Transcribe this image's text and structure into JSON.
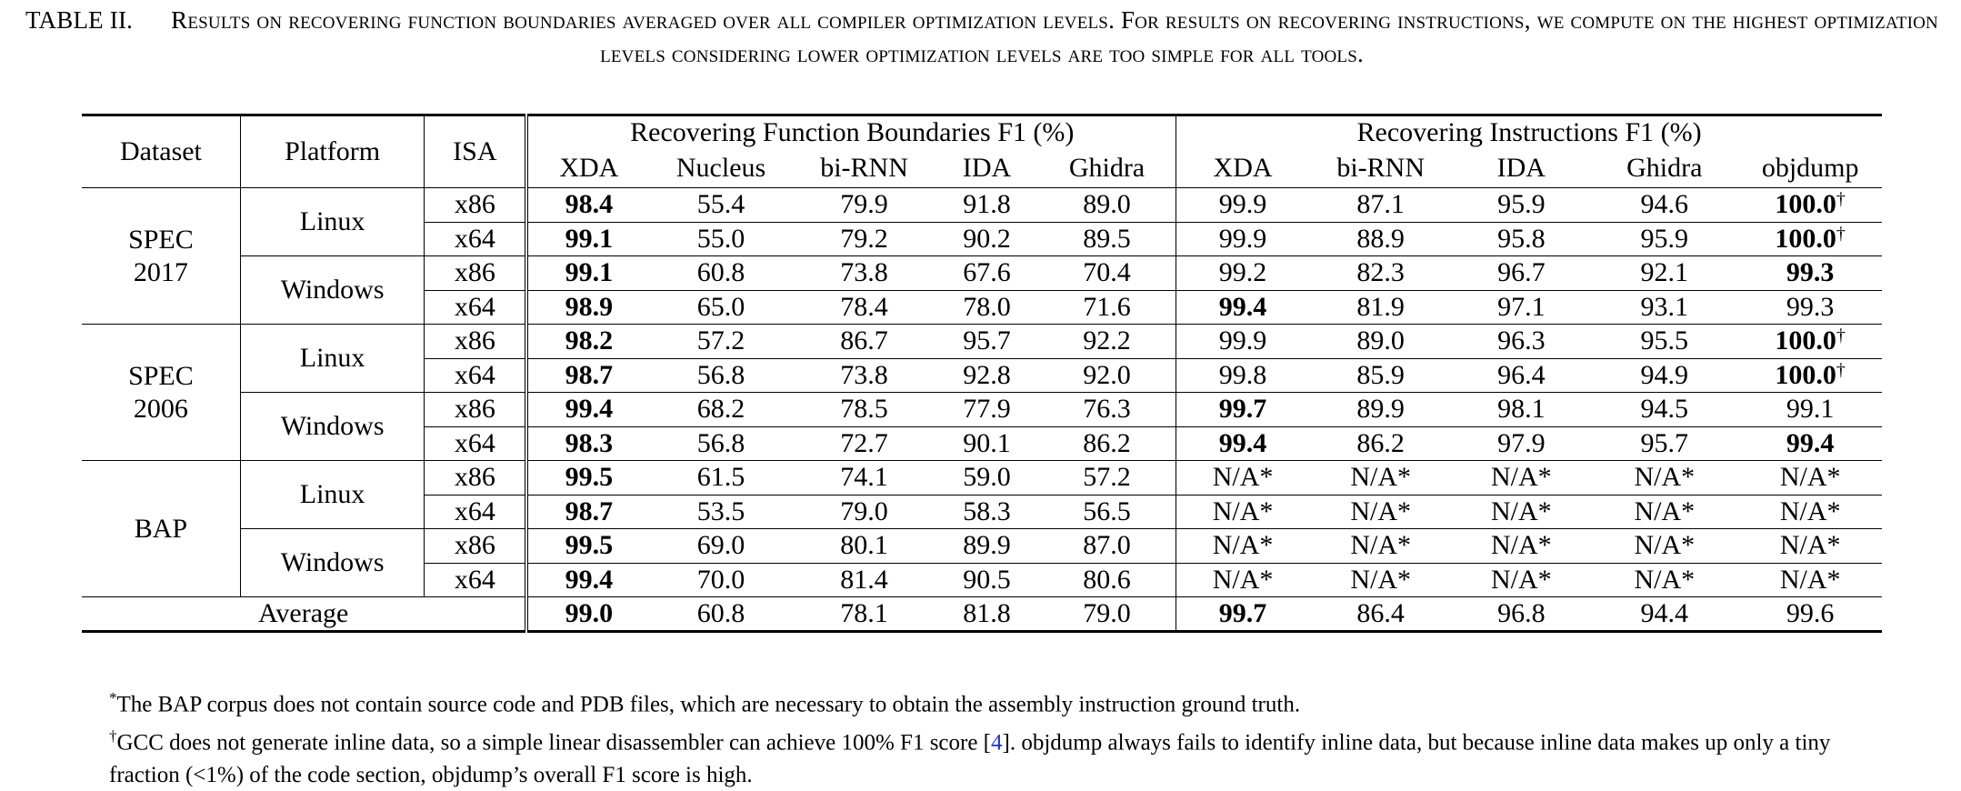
{
  "caption": {
    "label": "TABLE II.",
    "text": "Results on recovering function boundaries averaged over all compiler optimization levels. For results on recovering instructions, we compute on the highest optimization levels considering lower optimization levels are too simple for all tools."
  },
  "headers": {
    "dataset": "Dataset",
    "platform": "Platform",
    "isa": "ISA",
    "group_fb": "Recovering Function Boundaries F1 (%)",
    "group_ins": "Recovering Instructions F1 (%)",
    "fb_tools": [
      "XDA",
      "Nucleus",
      "bi-RNN",
      "IDA",
      "Ghidra"
    ],
    "ins_tools": [
      "XDA",
      "bi-RNN",
      "IDA",
      "Ghidra",
      "objdump"
    ]
  },
  "datasets": [
    {
      "name": [
        "SPEC",
        "2017"
      ],
      "platforms": [
        {
          "name": "Linux",
          "rows": [
            {
              "isa": "x86",
              "fb": [
                "98.4",
                "55.4",
                "79.9",
                "91.8",
                "89.0"
              ],
              "ins": [
                "99.9",
                "87.1",
                "95.9",
                "94.6",
                "100.0"
              ]
            },
            {
              "isa": "x64",
              "fb": [
                "99.1",
                "55.0",
                "79.2",
                "90.2",
                "89.5"
              ],
              "ins": [
                "99.9",
                "88.9",
                "95.8",
                "95.9",
                "100.0"
              ]
            }
          ]
        },
        {
          "name": "Windows",
          "rows": [
            {
              "isa": "x86",
              "fb": [
                "99.1",
                "60.8",
                "73.8",
                "67.6",
                "70.4"
              ],
              "ins": [
                "99.2",
                "82.3",
                "96.7",
                "92.1",
                "99.3"
              ]
            },
            {
              "isa": "x64",
              "fb": [
                "98.9",
                "65.0",
                "78.4",
                "78.0",
                "71.6"
              ],
              "ins": [
                "99.4",
                "81.9",
                "97.1",
                "93.1",
                "99.3"
              ]
            }
          ]
        }
      ]
    },
    {
      "name": [
        "SPEC",
        "2006"
      ],
      "platforms": [
        {
          "name": "Linux",
          "rows": [
            {
              "isa": "x86",
              "fb": [
                "98.2",
                "57.2",
                "86.7",
                "95.7",
                "92.2"
              ],
              "ins": [
                "99.9",
                "89.0",
                "96.3",
                "95.5",
                "100.0"
              ]
            },
            {
              "isa": "x64",
              "fb": [
                "98.7",
                "56.8",
                "73.8",
                "92.8",
                "92.0"
              ],
              "ins": [
                "99.8",
                "85.9",
                "96.4",
                "94.9",
                "100.0"
              ]
            }
          ]
        },
        {
          "name": "Windows",
          "rows": [
            {
              "isa": "x86",
              "fb": [
                "99.4",
                "68.2",
                "78.5",
                "77.9",
                "76.3"
              ],
              "ins": [
                "99.7",
                "89.9",
                "98.1",
                "94.5",
                "99.1"
              ]
            },
            {
              "isa": "x64",
              "fb": [
                "98.3",
                "56.8",
                "72.7",
                "90.1",
                "86.2"
              ],
              "ins": [
                "99.4",
                "86.2",
                "97.9",
                "95.7",
                "99.4"
              ]
            }
          ]
        }
      ]
    },
    {
      "name": [
        "BAP"
      ],
      "platforms": [
        {
          "name": "Linux",
          "rows": [
            {
              "isa": "x86",
              "fb": [
                "99.5",
                "61.5",
                "74.1",
                "59.0",
                "57.2"
              ],
              "ins": [
                "N/A*",
                "N/A*",
                "N/A*",
                "N/A*",
                "N/A*"
              ]
            },
            {
              "isa": "x64",
              "fb": [
                "98.7",
                "53.5",
                "79.0",
                "58.3",
                "56.5"
              ],
              "ins": [
                "N/A*",
                "N/A*",
                "N/A*",
                "N/A*",
                "N/A*"
              ]
            }
          ]
        },
        {
          "name": "Windows",
          "rows": [
            {
              "isa": "x86",
              "fb": [
                "99.5",
                "69.0",
                "80.1",
                "89.9",
                "87.0"
              ],
              "ins": [
                "N/A*",
                "N/A*",
                "N/A*",
                "N/A*",
                "N/A*"
              ]
            },
            {
              "isa": "x64",
              "fb": [
                "99.4",
                "70.0",
                "81.4",
                "90.5",
                "80.6"
              ],
              "ins": [
                "N/A*",
                "N/A*",
                "N/A*",
                "N/A*",
                "N/A*"
              ]
            }
          ]
        }
      ]
    }
  ],
  "average": {
    "label": "Average",
    "fb": [
      "99.0",
      "60.8",
      "78.1",
      "81.8",
      "79.0"
    ],
    "ins": [
      "99.7",
      "86.4",
      "96.8",
      "94.4",
      "99.6"
    ]
  },
  "dagger": "†",
  "footnotes": {
    "star_mark": "*",
    "star_text": "The BAP corpus does not contain source code and PDB files, which are necessary to obtain the assembly instruction ground truth.",
    "dagger_mark": "†",
    "dagger_text_1": "GCC does not generate inline data, so a simple linear disassembler can achieve 100% F1 score [",
    "dagger_ref": "4",
    "dagger_text_2": "]. objdump always fails to identify inline data, but because inline data makes up only a tiny fraction (<1%) of the code section, objdump’s overall F1 score is high."
  }
}
